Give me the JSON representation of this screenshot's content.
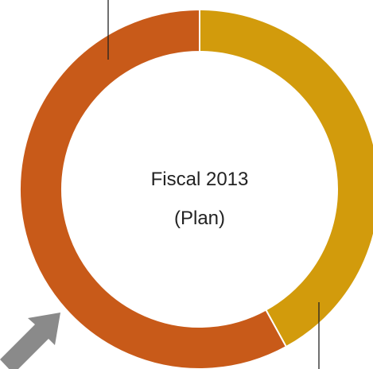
{
  "chart_data": {
    "type": "pie",
    "style": "donut",
    "center_label": [
      "Fiscal 2013",
      "(Plan)"
    ],
    "slices": [
      {
        "value": 42,
        "color": "#D29B0C"
      },
      {
        "value": 58,
        "color": "#C85A19"
      }
    ]
  },
  "colors": {
    "leader_line": "#222222",
    "slice_border": "#ffffff",
    "arrow": "#8A8A8A"
  },
  "decorations": {
    "arrow_icon": "arrow-up-right-icon"
  }
}
